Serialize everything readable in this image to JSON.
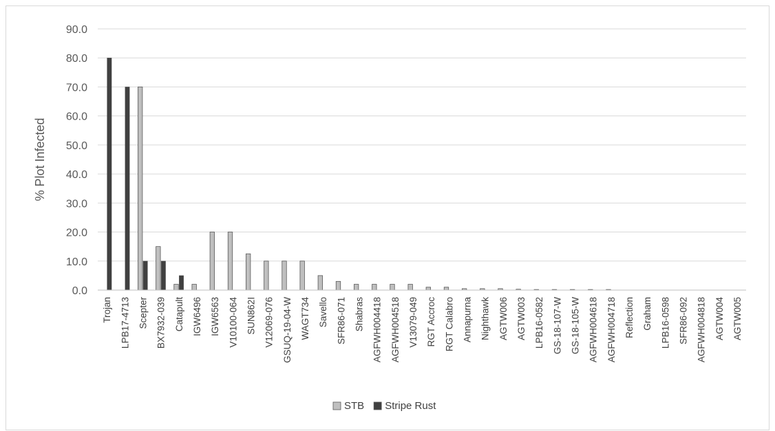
{
  "chart_data": {
    "type": "bar",
    "title": "",
    "xlabel": "",
    "ylabel": "% Plot Infected",
    "ylim": [
      0,
      90
    ],
    "yticks": [
      "0.0",
      "10.0",
      "20.0",
      "30.0",
      "40.0",
      "50.0",
      "60.0",
      "70.0",
      "80.0",
      "90.0"
    ],
    "grid": true,
    "legend_position": "bottom",
    "categories": [
      "Trojan",
      "LPB17-4713",
      "Scepter",
      "BX7932-039",
      "Catapult",
      "IGW6496",
      "IGW6563",
      "V10100-064",
      "SUN862I",
      "V12069-076",
      "GSUQ-19-04-W",
      "WAGT734",
      "Savello",
      "SFR86-071",
      "Shabras",
      "AGFWH004418",
      "AGFWH004518",
      "V13079-049",
      "RGT Accroc",
      "RGT Calabro",
      "Annapurna",
      "Nighthawk",
      "AGTW006",
      "AGTW003",
      "LPB16-0582",
      "GS-18-107-W",
      "GS-18-105-W",
      "AGFWH004618",
      "AGFWH004718",
      "Reflection",
      "Graham",
      "LPB16-0598",
      "SFR86-092",
      "AGFWH004818",
      "AGTW004",
      "AGTW005"
    ],
    "series": [
      {
        "name": "STB",
        "color": "#bfbfbf",
        "values": [
          0,
          0,
          70,
          15,
          2,
          2,
          20,
          20,
          12.5,
          10,
          10,
          10,
          5,
          3,
          2,
          2,
          2,
          2,
          1,
          1,
          0.5,
          0.5,
          0.5,
          0.3,
          0.2,
          0.2,
          0.2,
          0.2,
          0.2,
          0,
          0,
          0,
          0,
          0,
          0,
          0
        ]
      },
      {
        "name": "Stripe Rust",
        "color": "#404040",
        "values": [
          80,
          70,
          10,
          10,
          5,
          0,
          0,
          0,
          0,
          0,
          0,
          0,
          0,
          0,
          0,
          0,
          0,
          0,
          0,
          0,
          0,
          0,
          0,
          0,
          0,
          0,
          0,
          0,
          0,
          0,
          0,
          0,
          0,
          0,
          0,
          0
        ]
      }
    ]
  }
}
